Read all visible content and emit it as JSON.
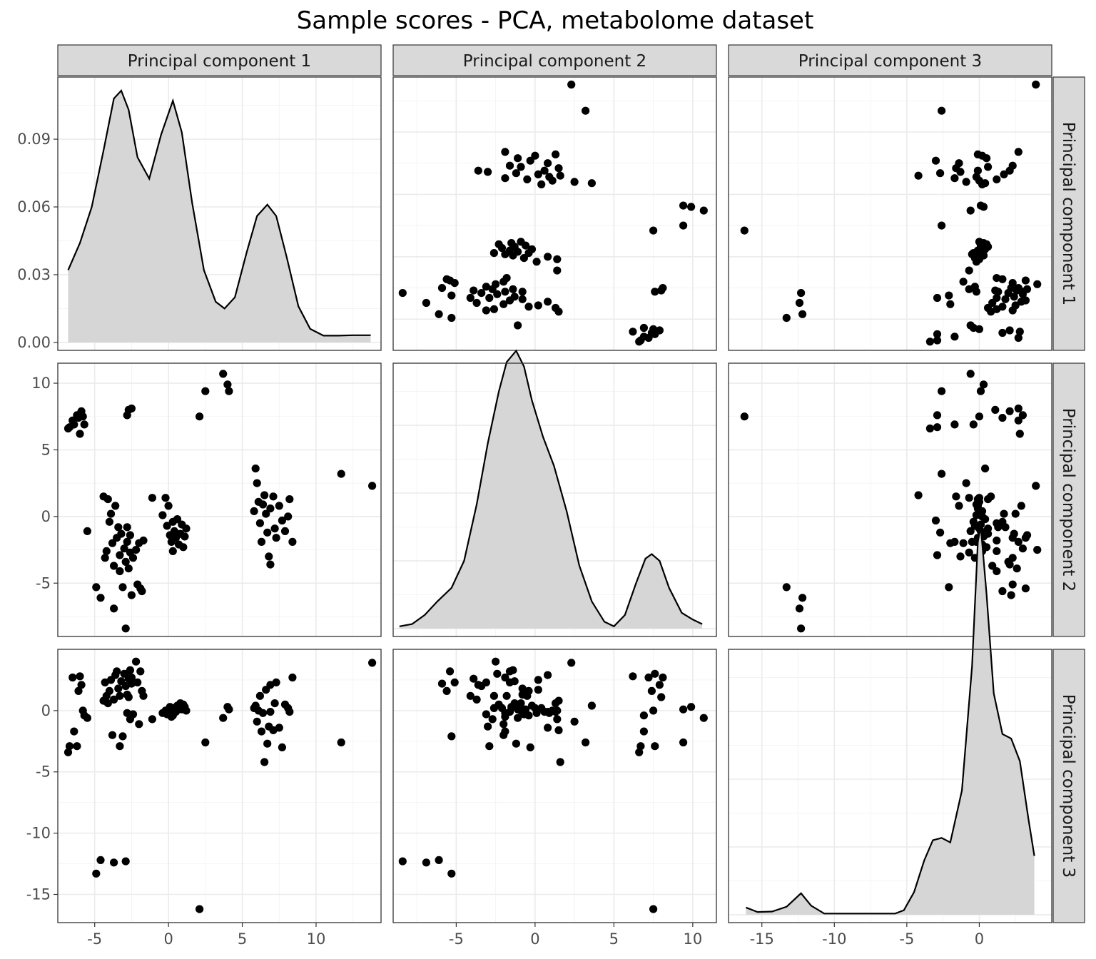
{
  "chart_data": {
    "type": "scatter",
    "title": "Sample scores - PCA, metabolome dataset",
    "variables": [
      "Principal component 1",
      "Principal component 2",
      "Principal component 3"
    ],
    "grid": true,
    "facet_layout": "3x3 scatterplot matrix; diagonal shows density curves",
    "axes": {
      "pc1": {
        "range": [
          -7.5,
          14.4
        ],
        "ticks": [
          -5,
          0,
          5,
          10
        ],
        "tick_labels": [
          "-5",
          "0",
          "5",
          "10"
        ]
      },
      "pc2": {
        "range": [
          -9.0,
          11.5
        ],
        "ticks": [
          -5,
          0,
          5,
          10
        ],
        "tick_labels": [
          "-5",
          "0",
          "5",
          "10"
        ]
      },
      "pc3": {
        "range": [
          -17.3,
          5.0
        ],
        "ticks": [
          -15,
          -10,
          -5,
          0
        ],
        "tick_labels": [
          "-15",
          "-10",
          "-5",
          "0"
        ]
      },
      "density": {
        "range": [
          -0.0035,
          0.1175
        ],
        "ticks": [
          0,
          0.03,
          0.06,
          0.09
        ],
        "tick_labels": [
          "0.00",
          "0.03",
          "0.06",
          "0.09"
        ]
      }
    },
    "density": {
      "pc1": [
        [
          -6.8,
          0.032
        ],
        [
          -6.0,
          0.044
        ],
        [
          -5.2,
          0.06
        ],
        [
          -4.4,
          0.085
        ],
        [
          -3.7,
          0.108
        ],
        [
          -3.2,
          0.1115
        ],
        [
          -2.7,
          0.103
        ],
        [
          -2.1,
          0.082
        ],
        [
          -1.3,
          0.0725
        ],
        [
          -0.5,
          0.092
        ],
        [
          0.3,
          0.107
        ],
        [
          0.9,
          0.093
        ],
        [
          1.6,
          0.062
        ],
        [
          2.4,
          0.032
        ],
        [
          3.2,
          0.018
        ],
        [
          3.8,
          0.015
        ],
        [
          4.5,
          0.02
        ],
        [
          5.3,
          0.04
        ],
        [
          6.0,
          0.056
        ],
        [
          6.7,
          0.061
        ],
        [
          7.3,
          0.056
        ],
        [
          8.0,
          0.038
        ],
        [
          8.8,
          0.016
        ],
        [
          9.6,
          0.006
        ],
        [
          10.5,
          0.003
        ],
        [
          11.5,
          0.003
        ],
        [
          12.5,
          0.0032
        ],
        [
          13.7,
          0.0032
        ]
      ],
      "pc2": [
        [
          -8.6,
          0.001
        ],
        [
          -7.8,
          0.002
        ],
        [
          -7.0,
          0.006
        ],
        [
          -6.2,
          0.012
        ],
        [
          -5.3,
          0.018
        ],
        [
          -4.5,
          0.03
        ],
        [
          -3.7,
          0.055
        ],
        [
          -3.0,
          0.082
        ],
        [
          -2.3,
          0.105
        ],
        [
          -1.8,
          0.118
        ],
        [
          -1.2,
          0.123
        ],
        [
          -0.7,
          0.116
        ],
        [
          -0.2,
          0.101
        ],
        [
          0.5,
          0.085
        ],
        [
          1.2,
          0.072
        ],
        [
          2.0,
          0.052
        ],
        [
          2.8,
          0.028
        ],
        [
          3.6,
          0.012
        ],
        [
          4.4,
          0.003
        ],
        [
          5.0,
          0.001
        ],
        [
          5.7,
          0.006
        ],
        [
          6.4,
          0.02
        ],
        [
          7.0,
          0.031
        ],
        [
          7.4,
          0.033
        ],
        [
          7.9,
          0.03
        ],
        [
          8.5,
          0.018
        ],
        [
          9.3,
          0.007
        ],
        [
          10.0,
          0.004
        ],
        [
          10.6,
          0.002
        ]
      ],
      "pc3": [
        [
          -16.1,
          0.0032
        ],
        [
          -15.3,
          0.0012
        ],
        [
          -14.3,
          0.0014
        ],
        [
          -13.3,
          0.0035
        ],
        [
          -12.3,
          0.0095
        ],
        [
          -11.6,
          0.004
        ],
        [
          -10.7,
          0.0005
        ],
        [
          -9,
          0.0005
        ],
        [
          -7,
          0.0005
        ],
        [
          -5.8,
          0.0005
        ],
        [
          -5.2,
          0.002
        ],
        [
          -4.5,
          0.01
        ],
        [
          -3.8,
          0.024
        ],
        [
          -3.2,
          0.033
        ],
        [
          -2.6,
          0.034
        ],
        [
          -2.0,
          0.032
        ],
        [
          -1.2,
          0.055
        ],
        [
          -0.5,
          0.11
        ],
        [
          -0.1,
          0.165
        ],
        [
          0.1,
          0.172
        ],
        [
          0.5,
          0.142
        ],
        [
          1.0,
          0.098
        ],
        [
          1.6,
          0.08
        ],
        [
          2.2,
          0.078
        ],
        [
          2.8,
          0.068
        ],
        [
          3.4,
          0.042
        ],
        [
          3.8,
          0.026
        ]
      ]
    },
    "samples": [
      {
        "pc1": -6.8,
        "pc2": 6.6,
        "pc3": -3.4
      },
      {
        "pc1": -6.7,
        "pc2": 6.7,
        "pc3": -2.9
      },
      {
        "pc1": -6.5,
        "pc2": 7.2,
        "pc3": 2.7
      },
      {
        "pc1": -6.4,
        "pc2": 6.9,
        "pc3": -1.7
      },
      {
        "pc1": -6.2,
        "pc2": 7.6,
        "pc3": -2.9
      },
      {
        "pc1": -6.1,
        "pc2": 7.4,
        "pc3": 1.6
      },
      {
        "pc1": -6.0,
        "pc2": 6.2,
        "pc3": 2.8
      },
      {
        "pc1": -5.9,
        "pc2": 7.9,
        "pc3": 2.1
      },
      {
        "pc1": -5.8,
        "pc2": 7.5,
        "pc3": 0.0
      },
      {
        "pc1": -5.7,
        "pc2": 6.9,
        "pc3": -0.4
      },
      {
        "pc1": -5.5,
        "pc2": -1.1,
        "pc3": -0.6
      },
      {
        "pc1": -4.9,
        "pc2": -5.3,
        "pc3": -13.3
      },
      {
        "pc1": -4.6,
        "pc2": -6.1,
        "pc3": -12.2
      },
      {
        "pc1": -4.4,
        "pc2": 1.5,
        "pc3": 0.8
      },
      {
        "pc1": -4.3,
        "pc2": -3.1,
        "pc3": 2.3
      },
      {
        "pc1": -4.2,
        "pc2": -2.6,
        "pc3": 1.2
      },
      {
        "pc1": -4.1,
        "pc2": 1.3,
        "pc3": 0.6
      },
      {
        "pc1": -4.0,
        "pc2": -0.4,
        "pc3": 1.6
      },
      {
        "pc1": -3.9,
        "pc2": 0.2,
        "pc3": 2.5
      },
      {
        "pc1": -3.8,
        "pc2": -2.0,
        "pc3": -2.0
      },
      {
        "pc1": -3.7,
        "pc2": -6.9,
        "pc3": -12.4
      },
      {
        "pc1": -3.7,
        "pc2": -3.7,
        "pc3": 0.9
      },
      {
        "pc1": -3.6,
        "pc2": 0.8,
        "pc3": 2.9
      },
      {
        "pc1": -3.5,
        "pc2": -1.6,
        "pc3": 3.2
      },
      {
        "pc1": -3.4,
        "pc2": -0.8,
        "pc3": 1.8
      },
      {
        "pc1": -3.3,
        "pc2": -4.1,
        "pc3": 1.2
      },
      {
        "pc1": -3.3,
        "pc2": -2.9,
        "pc3": -2.9
      },
      {
        "pc1": -3.2,
        "pc2": -1.3,
        "pc3": 2.4
      },
      {
        "pc1": -3.1,
        "pc2": -5.3,
        "pc3": -2.1
      },
      {
        "pc1": -3.0,
        "pc2": -2.4,
        "pc3": 3.0
      },
      {
        "pc1": -2.9,
        "pc2": -8.4,
        "pc3": -12.3
      },
      {
        "pc1": -2.9,
        "pc2": -3.4,
        "pc3": 2.0
      },
      {
        "pc1": -2.8,
        "pc2": -1.9,
        "pc3": -0.2
      },
      {
        "pc1": -2.8,
        "pc2": -0.8,
        "pc3": 1.3
      },
      {
        "pc1": -2.7,
        "pc2": -3.9,
        "pc3": 2.6
      },
      {
        "pc1": -2.6,
        "pc2": -2.7,
        "pc3": -0.7
      },
      {
        "pc1": -2.6,
        "pc2": -1.4,
        "pc3": 3.3
      },
      {
        "pc1": -2.5,
        "pc2": -5.9,
        "pc3": 2.2
      },
      {
        "pc1": -2.4,
        "pc2": -3.1,
        "pc3": -0.3
      },
      {
        "pc1": -2.8,
        "pc2": 7.6,
        "pc3": 3.0
      },
      {
        "pc1": -2.7,
        "pc2": 8.0,
        "pc3": 1.1
      },
      {
        "pc1": -2.5,
        "pc2": 8.1,
        "pc3": 2.7
      },
      {
        "pc1": -2.2,
        "pc2": -2.5,
        "pc3": 4.0
      },
      {
        "pc1": -2.1,
        "pc2": -5.1,
        "pc3": 2.3
      },
      {
        "pc1": -2.0,
        "pc2": -2.0,
        "pc3": -1.1
      },
      {
        "pc1": -1.9,
        "pc2": -5.4,
        "pc3": 3.2
      },
      {
        "pc1": -1.8,
        "pc2": -5.6,
        "pc3": 1.6
      },
      {
        "pc1": -1.7,
        "pc2": -1.8,
        "pc3": 1.2
      },
      {
        "pc1": -1.1,
        "pc2": 1.4,
        "pc3": -0.7
      },
      {
        "pc1": -0.4,
        "pc2": 0.1,
        "pc3": -0.2
      },
      {
        "pc1": -0.2,
        "pc2": 1.4,
        "pc3": 0.0
      },
      {
        "pc1": -0.1,
        "pc2": -0.7,
        "pc3": -0.3
      },
      {
        "pc1": 0.0,
        "pc2": 0.8,
        "pc3": -0.1
      },
      {
        "pc1": 0.1,
        "pc2": -1.4,
        "pc3": 0.3
      },
      {
        "pc1": 0.2,
        "pc2": -1.9,
        "pc3": -0.5
      },
      {
        "pc1": 0.3,
        "pc2": -2.6,
        "pc3": 0.2
      },
      {
        "pc1": 0.3,
        "pc2": -0.4,
        "pc3": -0.4
      },
      {
        "pc1": 0.4,
        "pc2": -1.1,
        "pc3": 0.1
      },
      {
        "pc1": 0.5,
        "pc2": -1.6,
        "pc3": -0.1
      },
      {
        "pc1": 0.6,
        "pc2": -0.2,
        "pc3": 0.4
      },
      {
        "pc1": 0.7,
        "pc2": -2.1,
        "pc3": 0.2
      },
      {
        "pc1": 0.8,
        "pc2": -1.3,
        "pc3": 0.6
      },
      {
        "pc1": 0.9,
        "pc2": -0.6,
        "pc3": 0.1
      },
      {
        "pc1": 1.0,
        "pc2": -2.3,
        "pc3": 0.5
      },
      {
        "pc1": 1.1,
        "pc2": -1.5,
        "pc3": 0.3
      },
      {
        "pc1": 1.2,
        "pc2": -0.9,
        "pc3": 0.0
      },
      {
        "pc1": 2.1,
        "pc2": 7.5,
        "pc3": -16.2
      },
      {
        "pc1": 2.5,
        "pc2": 9.4,
        "pc3": -2.6
      },
      {
        "pc1": 3.7,
        "pc2": 10.7,
        "pc3": -0.6
      },
      {
        "pc1": 4.0,
        "pc2": 9.9,
        "pc3": 0.3
      },
      {
        "pc1": 4.1,
        "pc2": 9.4,
        "pc3": 0.1
      },
      {
        "pc1": 5.8,
        "pc2": 0.4,
        "pc3": 0.2
      },
      {
        "pc1": 5.9,
        "pc2": 3.6,
        "pc3": 0.4
      },
      {
        "pc1": 6.0,
        "pc2": 2.5,
        "pc3": -0.9
      },
      {
        "pc1": 6.1,
        "pc2": 1.1,
        "pc3": 0.0
      },
      {
        "pc1": 6.2,
        "pc2": -0.5,
        "pc3": 1.2
      },
      {
        "pc1": 6.3,
        "pc2": -1.9,
        "pc3": -1.7
      },
      {
        "pc1": 6.4,
        "pc2": 0.9,
        "pc3": -0.2
      },
      {
        "pc1": 6.5,
        "pc2": 1.6,
        "pc3": -4.2
      },
      {
        "pc1": 6.6,
        "pc2": 0.2,
        "pc3": 1.7
      },
      {
        "pc1": 6.7,
        "pc2": -1.2,
        "pc3": -2.7
      },
      {
        "pc1": 6.8,
        "pc2": -3.0,
        "pc3": -1.3
      },
      {
        "pc1": 6.9,
        "pc2": -3.6,
        "pc3": 2.1
      },
      {
        "pc1": 6.9,
        "pc2": 0.6,
        "pc3": -0.1
      },
      {
        "pc1": 7.1,
        "pc2": 1.5,
        "pc3": -1.6
      },
      {
        "pc1": 7.2,
        "pc2": -0.9,
        "pc3": 0.6
      },
      {
        "pc1": 7.3,
        "pc2": -1.6,
        "pc3": 2.3
      },
      {
        "pc1": 7.5,
        "pc2": 0.8,
        "pc3": -1.4
      },
      {
        "pc1": 7.7,
        "pc2": -0.3,
        "pc3": -3.0
      },
      {
        "pc1": 7.9,
        "pc2": -1.1,
        "pc3": 0.5
      },
      {
        "pc1": 8.1,
        "pc2": 0.0,
        "pc3": 0.2
      },
      {
        "pc1": 8.2,
        "pc2": 1.3,
        "pc3": -0.1
      },
      {
        "pc1": 8.4,
        "pc2": -1.9,
        "pc3": 2.7
      },
      {
        "pc1": 11.7,
        "pc2": 3.2,
        "pc3": -2.6
      },
      {
        "pc1": 13.8,
        "pc2": 2.3,
        "pc3": 3.9
      }
    ]
  }
}
